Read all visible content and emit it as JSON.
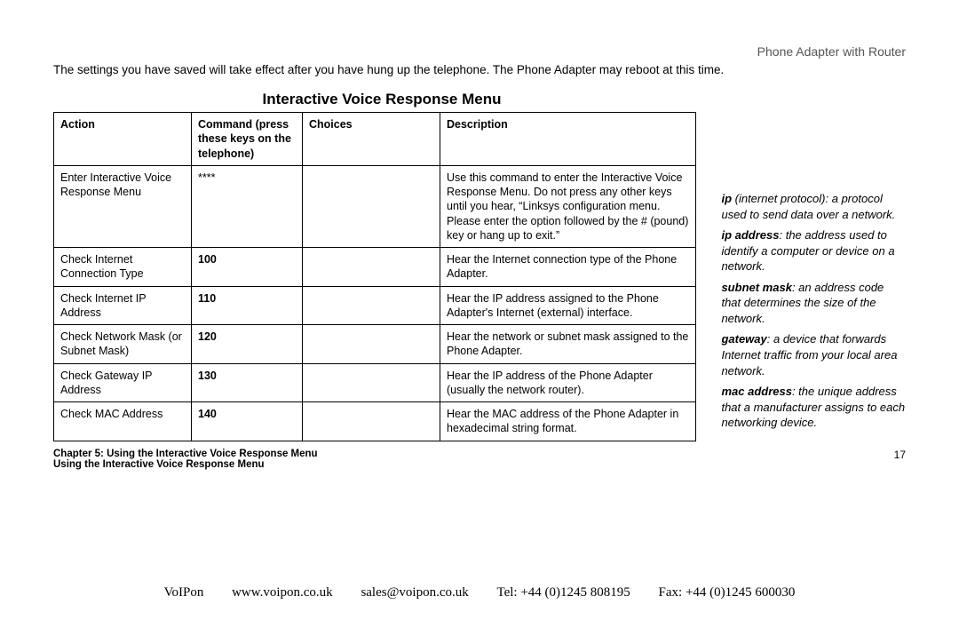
{
  "header": {
    "product": "Phone Adapter with Router"
  },
  "intro": "The settings you have saved will take effect after you have hung up the telephone. The Phone Adapter may reboot at this time.",
  "table": {
    "title": "Interactive Voice Response Menu",
    "columns": {
      "action": "Action",
      "command": "Command (press these keys on the telephone)",
      "choices": "Choices",
      "description": "Description"
    },
    "rows": [
      {
        "action": "Enter Interactive Voice Response Menu",
        "command": "****",
        "command_bold": false,
        "choices": "",
        "description": "Use this command to enter the Interactive Voice Response Menu. Do not press any other keys until you hear, “Linksys configuration menu. Please enter the option followed by the # (pound) key or hang up to exit.”"
      },
      {
        "action": "Check Internet Connection Type",
        "command": "100",
        "command_bold": true,
        "choices": "",
        "description": "Hear the Internet connection type of the Phone Adapter."
      },
      {
        "action": "Check Internet IP Address",
        "command": "110",
        "command_bold": true,
        "choices": "",
        "description": "Hear the IP address assigned to the Phone Adapter's Internet (external) interface."
      },
      {
        "action": "Check Network Mask (or Subnet Mask)",
        "command": "120",
        "command_bold": true,
        "choices": "",
        "description": "Hear the network or subnet mask assigned to the Phone Adapter."
      },
      {
        "action": "Check Gateway IP Address",
        "command": "130",
        "command_bold": true,
        "choices": "",
        "description": "Hear the IP address of the Phone Adapter (usually the network router)."
      },
      {
        "action": "Check MAC Address",
        "command": "140",
        "command_bold": true,
        "choices": "",
        "description": "Hear the MAC address of the Phone Adapter in hexadecimal string format."
      }
    ]
  },
  "definitions": [
    {
      "term": "ip",
      "extra": " (internet protocol)",
      "text": ": a protocol used to send data over a network."
    },
    {
      "term": "ip address",
      "extra": "",
      "text": ": the address used to identify a computer or device on a network."
    },
    {
      "term": "subnet mask",
      "extra": "",
      "text": ": an address code that determines the size of the network."
    },
    {
      "term": "gateway",
      "extra": "",
      "text": ": a device that forwards Internet traffic from your local area network."
    },
    {
      "term": "mac address",
      "extra": "",
      "text": ": the unique address that a manufacturer assigns to each networking device."
    }
  ],
  "footer": {
    "chapter": "Chapter 5: Using the Interactive Voice Response Menu",
    "section": "Using the Interactive Voice Response Menu",
    "page": "17"
  },
  "contact": {
    "name": "VoIPon",
    "web": "www.voipon.co.uk",
    "email": "sales@voipon.co.uk",
    "tel": "Tel: +44 (0)1245 808195",
    "fax": "Fax: +44 (0)1245 600030"
  }
}
